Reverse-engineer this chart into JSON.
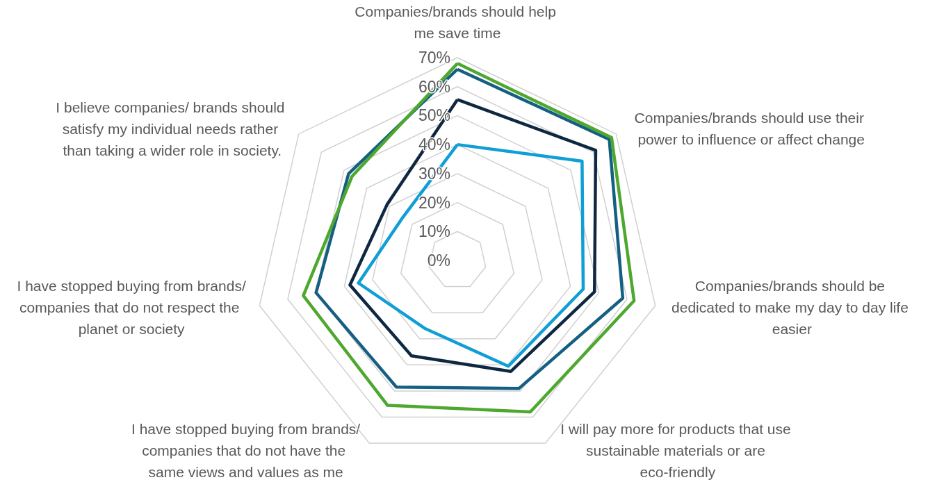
{
  "chart_data": {
    "type": "radar",
    "categories": [
      "Companies/brands should help me save time",
      "Companies/brands should use their power to influence or affect change",
      "Companies/brands should be dedicated to make my day to day life easier",
      "I will pay more for products that use sustainable materials or are eco-friendly",
      "I have stopped buying from brands/companies that do not have the same views and values as me",
      "I have stopped buying from brands/companies that do not respect the planet or society",
      "I believe companies/ brands should satisfy my individual needs rather than taking a wider role in society."
    ],
    "series": [
      {
        "color": "#0f9ed5",
        "values": [
          40,
          55,
          44.5,
          40.5,
          26,
          35,
          24
        ]
      },
      {
        "color": "#0e2841",
        "values": [
          55.5,
          61,
          48.5,
          42.5,
          36.5,
          38,
          31
        ]
      },
      {
        "color": "#156082",
        "values": [
          66,
          67,
          58.5,
          49,
          48.5,
          50,
          48
        ]
      },
      {
        "color": "#4ea72e",
        "values": [
          68,
          68,
          62.5,
          58,
          55.5,
          54.5,
          46.5
        ]
      }
    ],
    "ylim": [
      0,
      70
    ],
    "yticks": [
      {
        "value": 0,
        "label": "0%"
      },
      {
        "value": 10,
        "label": "10%"
      },
      {
        "value": 20,
        "label": "20%"
      },
      {
        "value": 30,
        "label": "30%"
      },
      {
        "value": 40,
        "label": "40%"
      },
      {
        "value": 50,
        "label": "50%"
      },
      {
        "value": 60,
        "label": "60%"
      },
      {
        "value": 70,
        "label": "70%"
      }
    ],
    "grid": true,
    "marker": "none"
  }
}
